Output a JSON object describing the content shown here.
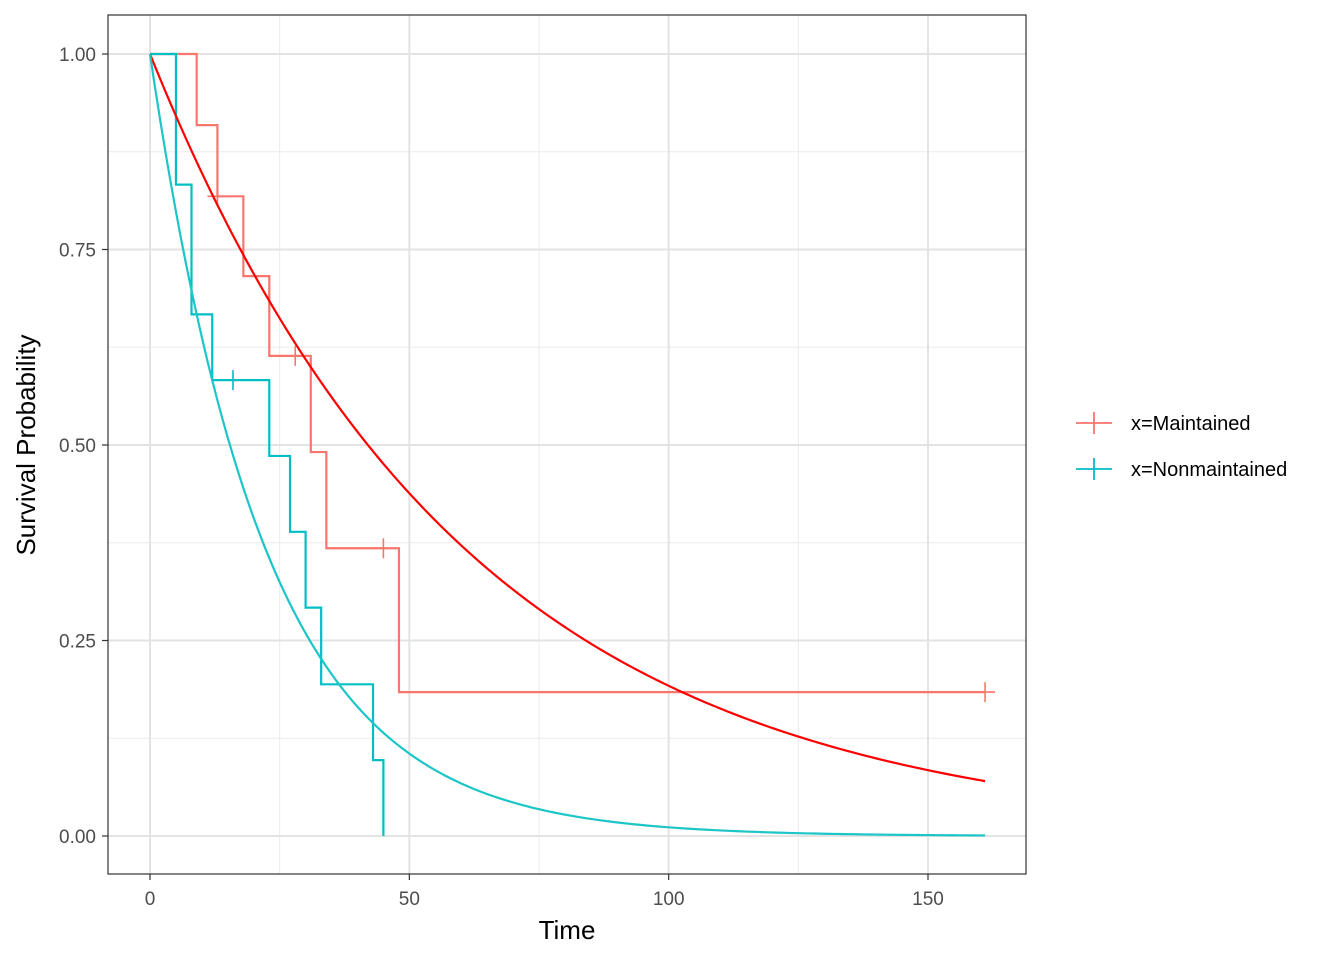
{
  "chart_data": {
    "type": "line",
    "title": "",
    "xlabel": "Time",
    "ylabel": "Survival Probability",
    "xlim": [
      -8,
      169
    ],
    "ylim": [
      -0.05,
      1.05
    ],
    "xticks": [
      0,
      50,
      100,
      150
    ],
    "yticks": [
      0,
      0.25,
      0.5,
      0.75,
      1
    ],
    "ytick_labels": [
      "0.00",
      "0.25",
      "0.50",
      "0.75",
      "1.00"
    ],
    "xtick_labels": [
      "0",
      "50",
      "100",
      "150"
    ],
    "grid": true,
    "legend_position": "right",
    "series": [
      {
        "name": "x=Maintained",
        "color": "#F8766D",
        "kind": "step",
        "x": [
          0,
          9,
          13,
          18,
          23,
          31,
          34,
          48,
          161
        ],
        "y": [
          1,
          0.909,
          0.818,
          0.716,
          0.614,
          0.491,
          0.368,
          0.184,
          0.184
        ],
        "censored": [
          [
            13,
            0.818
          ],
          [
            28,
            0.614
          ],
          [
            45,
            0.368
          ],
          [
            161,
            0.184
          ]
        ]
      },
      {
        "name": "x=Nonmaintained",
        "color": "#00BFC4",
        "kind": "step",
        "x": [
          0,
          5,
          8,
          12,
          23,
          27,
          30,
          33,
          43,
          45
        ],
        "y": [
          1,
          0.833,
          0.667,
          0.583,
          0.486,
          0.389,
          0.292,
          0.194,
          0.097,
          0
        ],
        "censored": [
          [
            16,
            0.583
          ]
        ]
      }
    ],
    "fitted_curves": [
      {
        "group": "Maintained",
        "color": "#FF0000",
        "model": "exponential",
        "rate": 0.0165,
        "xmax": 161
      },
      {
        "group": "Nonmaintained",
        "color": "#1CC5C8",
        "model": "exponential",
        "rate": 0.045,
        "xmax": 161
      }
    ]
  }
}
